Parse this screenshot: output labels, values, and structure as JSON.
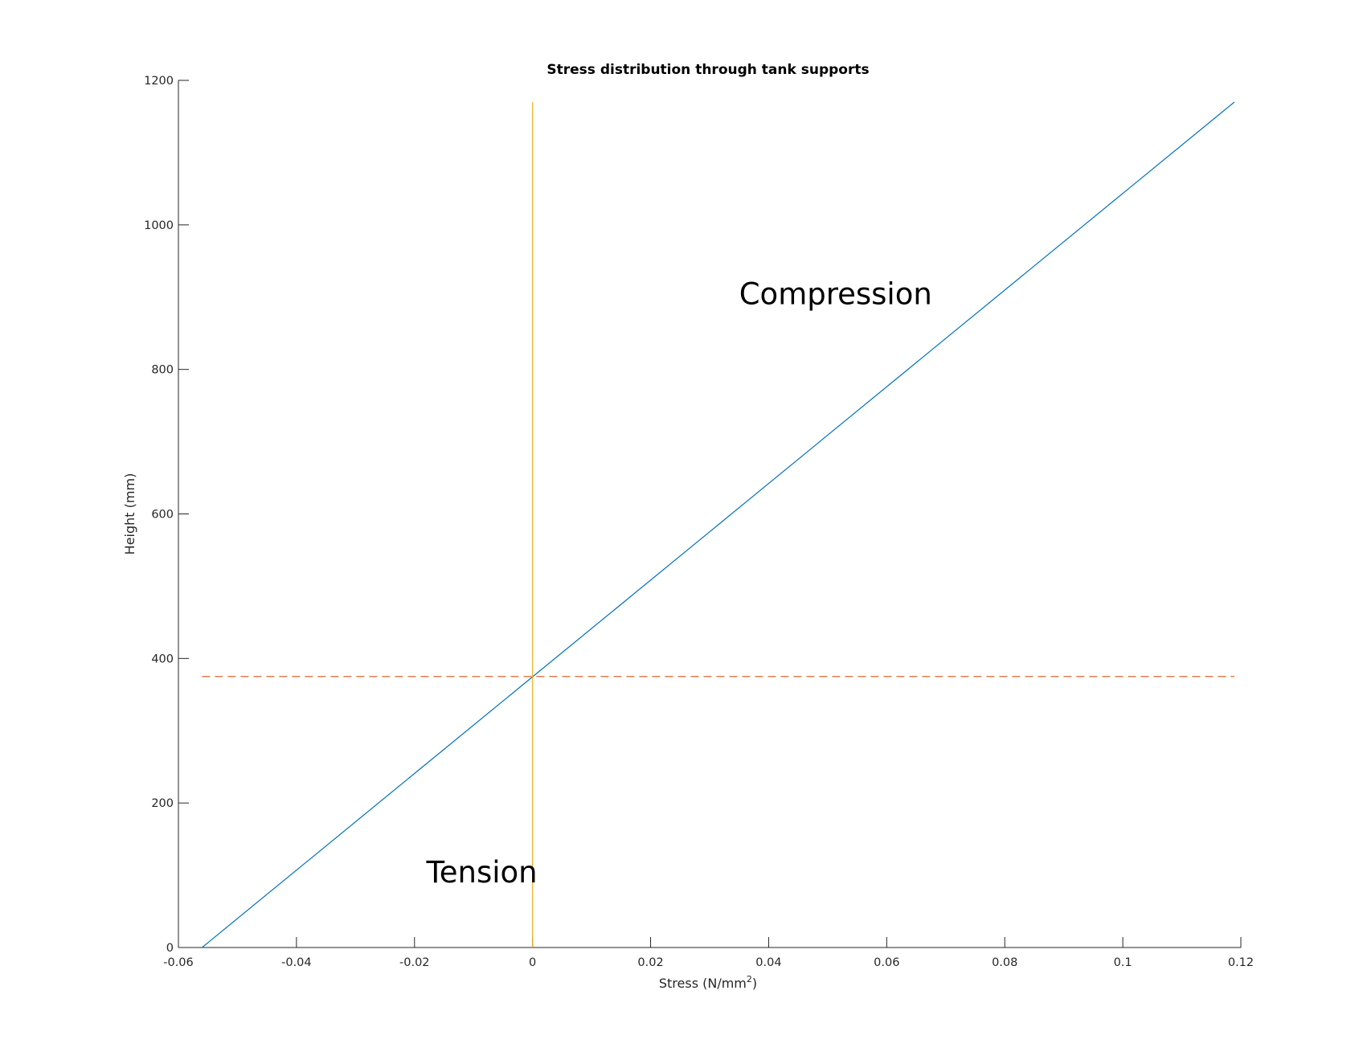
{
  "chart_data": {
    "type": "line",
    "title": "Stress distribution through tank supports",
    "xlabel": "Stress (N/mm",
    "xlabel_superscript": "2",
    "xlabel_suffix": ")",
    "ylabel": "Height (mm)",
    "xlim": [
      -0.06,
      0.12
    ],
    "ylim": [
      0,
      1200
    ],
    "xticks": [
      -0.06,
      -0.04,
      -0.02,
      0,
      0.02,
      0.04,
      0.06,
      0.08,
      0.1,
      0.12
    ],
    "xtick_labels": [
      "-0.06",
      "-0.04",
      "-0.02",
      "0",
      "0.02",
      "0.04",
      "0.06",
      "0.08",
      "0.1",
      "0.12"
    ],
    "yticks": [
      0,
      200,
      400,
      600,
      800,
      1000,
      1200
    ],
    "ytick_labels": [
      "0",
      "200",
      "400",
      "600",
      "800",
      "1000",
      "1200"
    ],
    "grid": false,
    "series": [
      {
        "x": [
          -0.056,
          0.1189
        ],
        "y": [
          0,
          1170
        ],
        "color": "#0072bd",
        "style": "solid"
      },
      {
        "x": [
          0,
          0
        ],
        "y": [
          0,
          1170
        ],
        "color": "#edb120",
        "style": "solid"
      },
      {
        "x": [
          -0.056,
          0.1189
        ],
        "y": [
          375,
          375
        ],
        "color": "#d95319",
        "style": "dashed"
      }
    ],
    "annotations": [
      {
        "text": "Compression",
        "x": 0.035,
        "y": 890
      },
      {
        "text": "Tension",
        "x": -0.018,
        "y": 90
      }
    ]
  }
}
